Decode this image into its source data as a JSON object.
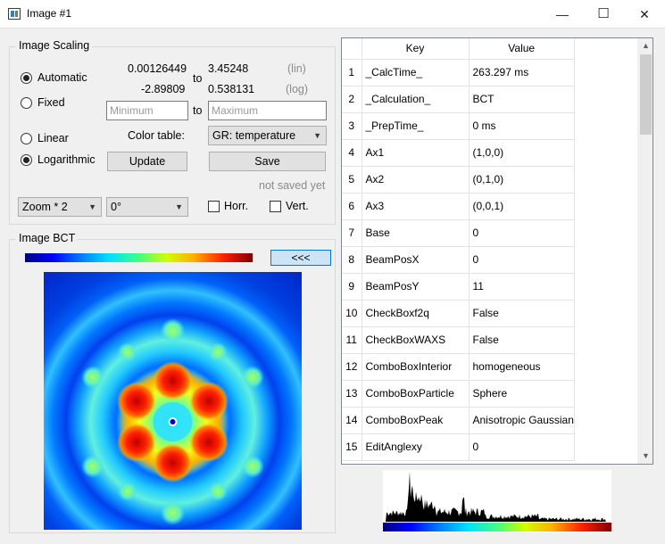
{
  "window": {
    "title": "Image #1",
    "min_glyph": "—",
    "max_glyph": "☐",
    "close_glyph": "✕"
  },
  "scaling": {
    "group_title": "Image Scaling",
    "automatic_label": "Automatic",
    "fixed_label": "Fixed",
    "min_lin": "0.00126449",
    "max_lin": "3.45248",
    "min_log": "-2.89809",
    "max_log": "0.538131",
    "to_label": "to",
    "lin_label": "(lin)",
    "log_label": "(log)",
    "minimum_placeholder": "Minimum",
    "maximum_placeholder": "Maximum",
    "linear_label": "Linear",
    "log_scale_label": "Logarithmic",
    "color_table_label": "Color table:",
    "color_table_value": "GR: temperature",
    "update_label": "Update",
    "save_label": "Save",
    "save_status": "not saved yet",
    "zoom_value": "Zoom * 2",
    "rotation_value": "0°",
    "horr_label": "Horr.",
    "vert_label": "Vert.",
    "selected_mode": "Automatic",
    "selected_scale": "Logarithmic"
  },
  "image_group": {
    "title": "Image BCT",
    "collapse_label": "<<<"
  },
  "table": {
    "headers": [
      "Key",
      "Value"
    ],
    "rows": [
      {
        "n": "1",
        "key": "_CalcTime_",
        "value": "263.297 ms"
      },
      {
        "n": "2",
        "key": "_Calculation_",
        "value": "BCT"
      },
      {
        "n": "3",
        "key": "_PrepTime_",
        "value": "0 ms"
      },
      {
        "n": "4",
        "key": "Ax1",
        "value": "(1,0,0)"
      },
      {
        "n": "5",
        "key": "Ax2",
        "value": "(0,1,0)"
      },
      {
        "n": "6",
        "key": "Ax3",
        "value": "(0,0,1)"
      },
      {
        "n": "7",
        "key": "Base",
        "value": "0"
      },
      {
        "n": "8",
        "key": "BeamPosX",
        "value": "0"
      },
      {
        "n": "9",
        "key": "BeamPosY",
        "value": "11"
      },
      {
        "n": "10",
        "key": "CheckBoxf2q",
        "value": "False"
      },
      {
        "n": "11",
        "key": "CheckBoxWAXS",
        "value": "False"
      },
      {
        "n": "12",
        "key": "ComboBoxInterior",
        "value": "homogeneous"
      },
      {
        "n": "13",
        "key": "ComboBoxParticle",
        "value": "Sphere"
      },
      {
        "n": "14",
        "key": "ComboBoxPeak",
        "value": "Anisotropic Gaussian"
      },
      {
        "n": "15",
        "key": "EditAnglexy",
        "value": "0"
      }
    ]
  },
  "colors": {
    "window_bg": "#f0f0f0",
    "colormap": [
      "#00007f",
      "#0000ff",
      "#00bfff",
      "#00ffcf",
      "#7fff7f",
      "#ffff00",
      "#ff7f00",
      "#ff0000",
      "#7f0000"
    ]
  }
}
